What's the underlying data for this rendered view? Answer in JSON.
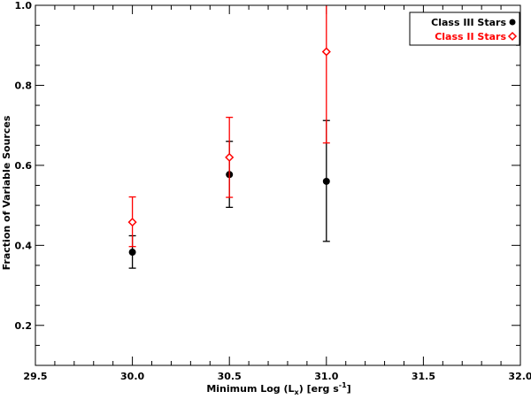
{
  "chart_data": {
    "type": "scatter",
    "xlabel_main": "Minimum Log (L",
    "xlabel_sub": "x",
    "xlabel_tail": ") [erg s",
    "xlabel_sup": "-1",
    "xlabel_end": "]",
    "ylabel": "Fraction of Variable Sources",
    "xlim": [
      29.5,
      32.0
    ],
    "ylim": [
      0.1,
      1.0
    ],
    "x_ticks": [
      29.5,
      30.0,
      30.5,
      31.0,
      31.5,
      32.0
    ],
    "x_tick_labels": [
      "29.5",
      "30.0",
      "30.5",
      "31.0",
      "31.5",
      "32.0"
    ],
    "y_ticks": [
      0.2,
      0.4,
      0.6,
      0.8,
      1.0
    ],
    "y_tick_labels": [
      "0.2",
      "0.4",
      "0.6",
      "0.8",
      "1.0"
    ],
    "grid": false,
    "legend_position": "top-right",
    "series": [
      {
        "name": "Class III Stars",
        "color": "#000000",
        "marker": "filled-circle",
        "x": [
          30.0,
          30.5,
          31.0
        ],
        "y": [
          0.383,
          0.577,
          0.56
        ],
        "err_low": [
          0.343,
          0.495,
          0.41
        ],
        "err_high": [
          0.424,
          0.66,
          0.712
        ]
      },
      {
        "name": "Class II Stars",
        "color": "#ff0000",
        "marker": "open-diamond",
        "x": [
          30.0,
          30.5,
          31.0
        ],
        "y": [
          0.458,
          0.62,
          0.884
        ],
        "err_low": [
          0.397,
          0.52,
          0.656
        ],
        "err_high": [
          0.521,
          0.72,
          1.0
        ]
      }
    ]
  }
}
